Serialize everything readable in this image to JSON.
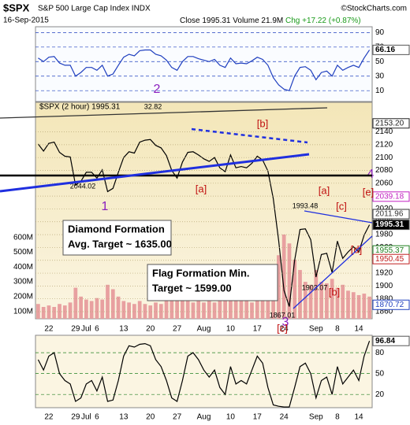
{
  "header": {
    "symbol": "$SPX",
    "name": "S&P 500 Large Cap Index INDX",
    "credit": "©StockCharts.com",
    "date": "16-Sep-2015",
    "close": "Close 1995.31",
    "volume": "Volume 21.9M",
    "change": "Chg +17.22 (+0.87%)"
  },
  "chart_data": [
    {
      "type": "line",
      "color": "#1f3fbf",
      "ylim": [
        -5,
        98
      ],
      "yticks": [
        90,
        70,
        50,
        30,
        10
      ],
      "grid": true,
      "values": [
        55,
        50,
        56,
        57,
        48,
        45,
        45,
        30,
        35,
        42,
        42,
        38,
        45,
        30,
        33,
        45,
        56,
        60,
        58,
        65,
        66,
        66,
        60,
        58,
        52,
        42,
        38,
        50,
        57,
        57,
        54,
        52,
        50,
        53,
        45,
        42,
        55,
        47,
        48,
        47,
        51,
        56,
        53,
        45,
        28,
        18,
        12,
        10,
        30,
        42,
        43,
        38,
        25,
        35,
        37,
        30,
        45,
        38,
        42,
        45,
        42,
        55,
        66.16
      ]
    },
    {
      "type": "line",
      "ylim": [
        1849,
        2186
      ],
      "yticks": [
        2140,
        2120,
        2100,
        2080,
        2060,
        2040,
        2020,
        2000,
        1980,
        1960,
        1940,
        1920,
        1900,
        1880,
        1860
      ],
      "grid": true,
      "categories": [
        null,
        null,
        "22",
        null,
        null,
        null,
        null,
        "29",
        null,
        "Jul",
        null,
        "6",
        null,
        null,
        null,
        null,
        "13",
        null,
        null,
        null,
        null,
        "20",
        null,
        null,
        null,
        null,
        "27",
        null,
        null,
        null,
        null,
        "Aug",
        null,
        null,
        null,
        null,
        "10",
        null,
        null,
        null,
        null,
        "17",
        null,
        null,
        null,
        null,
        "24",
        null,
        null,
        null,
        null,
        null,
        "Sep",
        null,
        null,
        null,
        "8",
        null,
        null,
        null,
        "14",
        null,
        null
      ],
      "y2lim": [
        50,
        1515
      ],
      "y2ticks": [
        {
          "value": 600,
          "label": "600M"
        },
        {
          "value": 500,
          "label": "500M"
        },
        {
          "value": 400,
          "label": "400M"
        },
        {
          "value": 300,
          "label": "300M"
        },
        {
          "value": 200,
          "label": "200M"
        },
        {
          "value": 100,
          "label": "100M"
        }
      ],
      "series": [
        {
          "name": "$SPX (2 hour) 1995.31",
          "color": "#000000",
          "values": [
            2121,
            2110,
            2122,
            2124,
            2108,
            2102,
            2101,
            2057,
            2063,
            2077,
            2077,
            2068,
            2081,
            2047,
            2052,
            2077,
            2100,
            2109,
            2107,
            2124,
            2127,
            2128,
            2119,
            2115,
            2103,
            2080,
            2068,
            2093,
            2108,
            2109,
            2104,
            2098,
            2094,
            2100,
            2084,
            2078,
            2104,
            2084,
            2086,
            2084,
            2091,
            2102,
            2096,
            2079,
            2036,
            1971,
            1893,
            1868,
            1940,
            1988,
            1989,
            1972,
            1914,
            1949,
            1951,
            1921,
            1970,
            1943,
            1953,
            1961,
            1953,
            1979,
            1995.31
          ]
        },
        {
          "axis": "y2",
          "type": "bar",
          "color": "#e8a0a0",
          "values": [
            150,
            130,
            140,
            130,
            150,
            140,
            160,
            260,
            200,
            180,
            170,
            190,
            180,
            280,
            250,
            200,
            170,
            160,
            150,
            170,
            150,
            140,
            160,
            150,
            180,
            220,
            230,
            190,
            170,
            160,
            170,
            160,
            170,
            160,
            180,
            190,
            170,
            190,
            180,
            170,
            160,
            170,
            180,
            220,
            330,
            480,
            620,
            560,
            450,
            380,
            300,
            280,
            380,
            300,
            290,
            320,
            260,
            280,
            240,
            230,
            210,
            220,
            200
          ]
        }
      ],
      "end_labels": [
        {
          "value": 2153.2,
          "label": "2153.20",
          "color": "#222222"
        },
        {
          "value": 2039.18,
          "label": "2039.18",
          "color": "#c020c0"
        },
        {
          "value": 2011.96,
          "label": "2011.96",
          "color": "#333333"
        },
        {
          "value": 1955.37,
          "label": "1955.37",
          "color": "#208020"
        },
        {
          "value": 1950.45,
          "label": "1950.45",
          "color": "#c02020"
        },
        {
          "value": 1870.72,
          "label": "1870.72",
          "color": "#1f3fbf"
        }
      ],
      "annotations": [
        "2",
        "1",
        "3",
        "4",
        "[b]",
        "[a]",
        "[a]",
        "[c]",
        "[e]",
        "[b]",
        "[d]",
        "[c]",
        "2044.02",
        "1993.48",
        "1903.07",
        "1867.01",
        "32.82"
      ],
      "boxes": [
        [
          "Diamond Formation",
          "Avg. Target ~ 1635.00"
        ],
        [
          "Flag Formation Min.",
          "Target ~ 1599.00"
        ]
      ]
    },
    {
      "type": "line",
      "color": "#000000",
      "ylim": [
        1,
        105
      ],
      "yticks": [
        80,
        50,
        20
      ],
      "grid": true,
      "values": [
        70,
        55,
        75,
        80,
        50,
        40,
        35,
        10,
        15,
        35,
        40,
        25,
        45,
        10,
        12,
        40,
        75,
        90,
        88,
        92,
        93,
        90,
        70,
        60,
        40,
        15,
        10,
        40,
        75,
        80,
        70,
        55,
        45,
        55,
        30,
        20,
        60,
        35,
        40,
        35,
        55,
        75,
        65,
        30,
        5,
        3,
        2,
        2,
        30,
        60,
        65,
        50,
        15,
        40,
        45,
        20,
        60,
        35,
        45,
        55,
        40,
        75,
        96.84
      ]
    }
  ]
}
